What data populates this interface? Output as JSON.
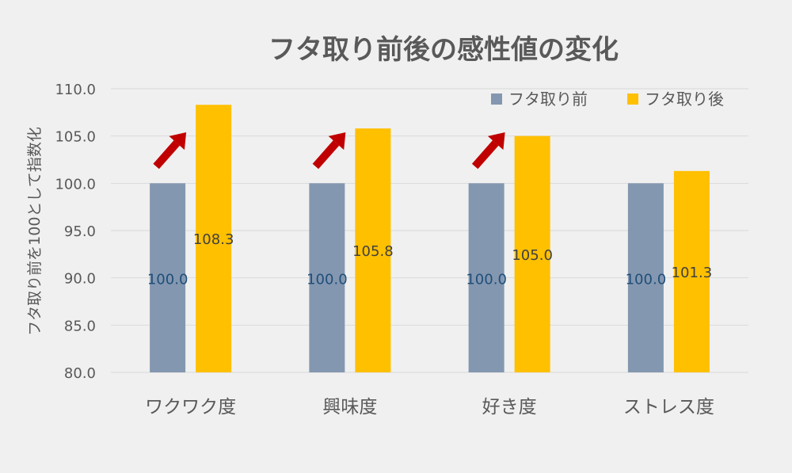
{
  "chart_data": {
    "type": "bar",
    "title": "フタ取り前後の感性値の変化",
    "xlabel": "",
    "ylabel": "フタ取り前を100として指数化",
    "categories": [
      "ワクワク度",
      "興味度",
      "好き度",
      "ストレス度"
    ],
    "series": [
      {
        "name": "フタ取り前",
        "values": [
          100.0,
          100.0,
          100.0,
          100.0
        ],
        "labels": [
          "100.0",
          "100.0",
          "100.0",
          "100.0"
        ],
        "color": "#8497b0",
        "label_color": "#1f4e79"
      },
      {
        "name": "フタ取り後",
        "values": [
          108.3,
          105.8,
          105.0,
          101.3
        ],
        "labels": [
          "108.3",
          "105.8",
          "105.0",
          "101.3"
        ],
        "color": "#ffc000",
        "label_color": "#404040"
      }
    ],
    "ylim": [
      80.0,
      110.0
    ],
    "yticks": [
      "80.0",
      "85.0",
      "90.0",
      "95.0",
      "100.0",
      "105.0",
      "110.0"
    ],
    "grid": true,
    "legend_position": "top-right",
    "annotations": [
      {
        "type": "arrow",
        "category": "ワクワク度",
        "color": "#c00000"
      },
      {
        "type": "arrow",
        "category": "興味度",
        "color": "#c00000"
      },
      {
        "type": "arrow",
        "category": "好き度",
        "color": "#c00000"
      }
    ]
  }
}
